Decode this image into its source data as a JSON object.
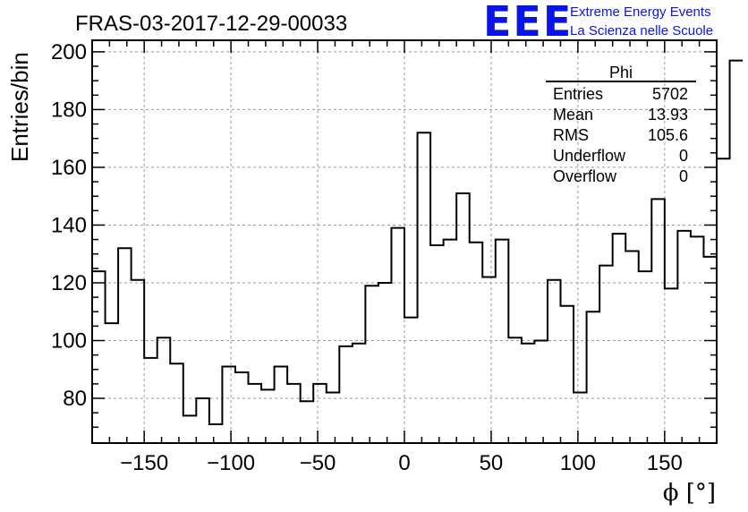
{
  "title": "FRAS-03-2017-12-29-00033",
  "logo": {
    "mark": "EEE",
    "line1": "Extreme Energy Events",
    "line2": "La Scienza nelle Scuole",
    "color": "#0a14e6"
  },
  "stats_box": {
    "title": "Phi",
    "rows": [
      {
        "label": "Entries",
        "value": "5702"
      },
      {
        "label": "Mean",
        "value": "13.93"
      },
      {
        "label": "RMS",
        "value": "105.6"
      },
      {
        "label": "Underflow",
        "value": "0"
      },
      {
        "label": "Overflow",
        "value": "0"
      }
    ]
  },
  "chart_data": {
    "type": "histogram",
    "title": "FRAS-03-2017-12-29-00033",
    "xlabel": "ϕ [°]",
    "ylabel": "Entries/bin",
    "xlim": [
      -180,
      180
    ],
    "ylim": [
      64.5,
      204
    ],
    "grid": true,
    "bin_width": 7.5,
    "x_ticks": [
      -150,
      -100,
      -50,
      0,
      50,
      100,
      150
    ],
    "x_tick_labels": [
      "−150",
      "−100",
      "−50",
      "0",
      "50",
      "100",
      "150"
    ],
    "y_ticks": [
      80,
      100,
      120,
      140,
      160,
      180,
      200
    ],
    "y_tick_labels": [
      "80",
      "100",
      "120",
      "140",
      "160",
      "180",
      "200"
    ],
    "bin_edges_start": -180,
    "values": [
      124,
      106,
      132,
      121,
      94,
      101,
      92,
      74,
      80,
      71,
      91,
      89,
      85,
      83,
      91,
      85,
      79,
      85,
      82,
      98,
      99,
      119,
      120,
      139,
      108,
      172,
      133,
      135,
      151,
      134,
      122,
      135,
      101,
      99,
      100,
      121,
      112,
      82,
      110,
      126,
      137,
      131,
      124,
      149,
      118,
      138,
      136,
      129,
      163,
      197
    ],
    "line_color": "#000000"
  }
}
